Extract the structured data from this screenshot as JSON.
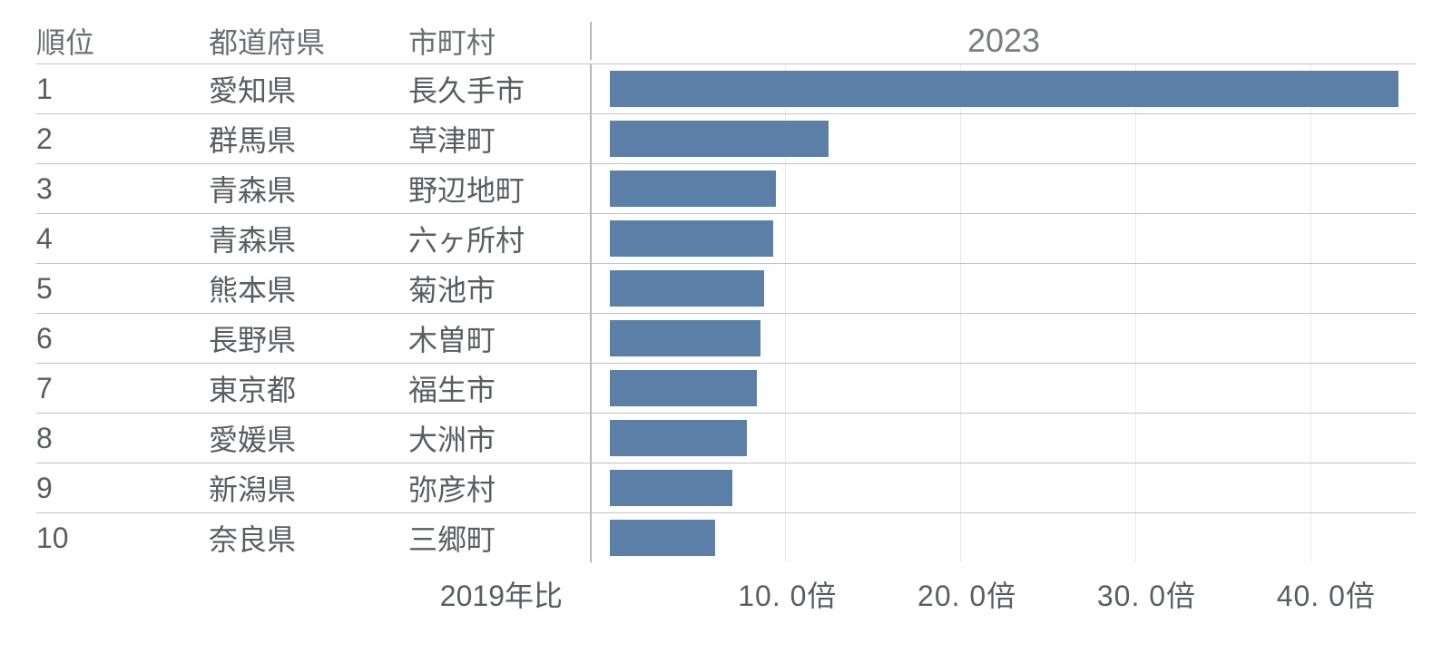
{
  "chart": {
    "type": "bar",
    "year_header": "2023",
    "columns": {
      "rank": "順位",
      "prefecture": "都道府県",
      "city": "市町村"
    },
    "axis": {
      "label": "2019年比",
      "min": 0,
      "max": 46,
      "ticks": [
        10,
        20,
        30,
        40
      ],
      "tick_labels": [
        "10. 0倍",
        "20. 0倍",
        "30. 0倍",
        "40. 0倍"
      ],
      "grid_color": "#e8e9ea"
    },
    "bar_color": "#5b7fa6",
    "text_color": "#5a5d60",
    "header_color": "#6b6e72",
    "border_color": "#c0c3c6",
    "divider_color": "#b4b7ba",
    "background_color": "#ffffff",
    "header_fontsize": 32,
    "cell_fontsize": 32,
    "year_fontsize": 36,
    "rows": [
      {
        "rank": "1",
        "prefecture": "愛知県",
        "city": "長久手市",
        "value": 45.0
      },
      {
        "rank": "2",
        "prefecture": "群馬県",
        "city": "草津町",
        "value": 12.5
      },
      {
        "rank": "3",
        "prefecture": "青森県",
        "city": "野辺地町",
        "value": 9.5
      },
      {
        "rank": "4",
        "prefecture": "青森県",
        "city": "六ヶ所村",
        "value": 9.3
      },
      {
        "rank": "5",
        "prefecture": "熊本県",
        "city": "菊池市",
        "value": 8.8
      },
      {
        "rank": "6",
        "prefecture": "長野県",
        "city": "木曽町",
        "value": 8.6
      },
      {
        "rank": "7",
        "prefecture": "東京都",
        "city": "福生市",
        "value": 8.4
      },
      {
        "rank": "8",
        "prefecture": "愛媛県",
        "city": "大洲市",
        "value": 7.8
      },
      {
        "rank": "9",
        "prefecture": "新潟県",
        "city": "弥彦村",
        "value": 7.0
      },
      {
        "rank": "10",
        "prefecture": "奈良県",
        "city": "三郷町",
        "value": 6.0
      }
    ]
  }
}
